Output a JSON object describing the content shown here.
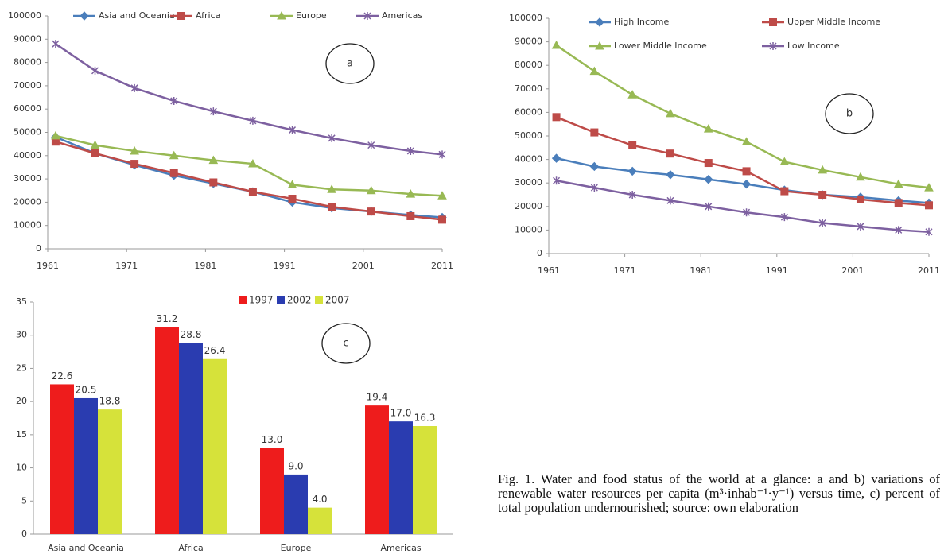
{
  "chart_data": [
    {
      "type": "line",
      "annotation": "a",
      "legend": "top",
      "x": [
        1962,
        1967,
        1972,
        1977,
        1982,
        1987,
        1992,
        1997,
        2002,
        2007,
        2011
      ],
      "xlim": [
        1961,
        2011
      ],
      "xticks": [
        1961,
        1971,
        1981,
        1991,
        2001,
        2011
      ],
      "ylim": [
        0,
        100000
      ],
      "yticks": [
        0,
        10000,
        20000,
        30000,
        40000,
        50000,
        60000,
        70000,
        80000,
        90000,
        100000
      ],
      "series": [
        {
          "name": "Asia and Oceania",
          "color": "#4a7ebb",
          "marker": "diamond",
          "values": [
            48000,
            41000,
            36000,
            31500,
            28000,
            24500,
            20000,
            17500,
            16000,
            14500,
            13500
          ]
        },
        {
          "name": "Africa",
          "color": "#be4b48",
          "marker": "square",
          "values": [
            46000,
            41000,
            36500,
            32500,
            28500,
            24500,
            21500,
            18000,
            16000,
            14000,
            12500
          ]
        },
        {
          "name": "Europe",
          "color": "#98b954",
          "marker": "triangle",
          "values": [
            48500,
            44500,
            42000,
            40000,
            38000,
            36500,
            27500,
            25500,
            25000,
            23500,
            22800
          ]
        },
        {
          "name": "Americas",
          "color": "#7d60a0",
          "marker": "x",
          "values": [
            88000,
            76500,
            69000,
            63500,
            59000,
            55000,
            51000,
            47500,
            44500,
            42000,
            40500
          ]
        }
      ]
    },
    {
      "type": "line",
      "annotation": "b",
      "legend": "top",
      "x": [
        1962,
        1967,
        1972,
        1977,
        1982,
        1987,
        1992,
        1997,
        2002,
        2007,
        2011
      ],
      "xlim": [
        1961,
        2011
      ],
      "xticks": [
        1961,
        1971,
        1981,
        1991,
        2001,
        2011
      ],
      "ylim": [
        0,
        100000
      ],
      "yticks": [
        0,
        10000,
        20000,
        30000,
        40000,
        50000,
        60000,
        70000,
        80000,
        90000,
        100000
      ],
      "series": [
        {
          "name": "High Income",
          "color": "#4a7ebb",
          "marker": "diamond",
          "values": [
            40500,
            37000,
            35000,
            33500,
            31500,
            29500,
            27000,
            25000,
            24000,
            22500,
            21500
          ]
        },
        {
          "name": "Upper Middle Income",
          "color": "#be4b48",
          "marker": "square",
          "values": [
            58000,
            51500,
            46000,
            42500,
            38500,
            35000,
            26500,
            25000,
            23000,
            21500,
            20500
          ]
        },
        {
          "name": "Lower Middle Income",
          "color": "#98b954",
          "marker": "triangle",
          "values": [
            88500,
            77500,
            67500,
            59500,
            53000,
            47500,
            39000,
            35500,
            32500,
            29500,
            28000
          ]
        },
        {
          "name": "Low Income",
          "color": "#7d60a0",
          "marker": "x",
          "values": [
            31000,
            28000,
            25000,
            22500,
            20000,
            17500,
            15500,
            13000,
            11500,
            10000,
            9200
          ]
        }
      ]
    },
    {
      "type": "bar",
      "annotation": "c",
      "legend": "top",
      "categories": [
        "Asia and Oceania",
        "Africa",
        "Europe",
        "Americas"
      ],
      "ylim": [
        0,
        35
      ],
      "yticks": [
        0,
        5,
        10,
        15,
        20,
        25,
        30,
        35
      ],
      "series": [
        {
          "name": "1997",
          "color": "#ee1c1c",
          "values": [
            22.6,
            31.2,
            13,
            19.4
          ],
          "value_labels": [
            "22.6",
            "31.2",
            "13.0",
            "19.4"
          ]
        },
        {
          "name": "2002",
          "color": "#2a3cb0",
          "values": [
            20.5,
            28.8,
            9,
            17
          ],
          "value_labels": [
            "20.5",
            "28.8",
            "9.0",
            "17.0"
          ]
        },
        {
          "name": "2007",
          "color": "#d6e23a",
          "values": [
            18.8,
            26.4,
            4,
            16.3
          ],
          "value_labels": [
            "18.8",
            "26.4",
            "4.0",
            "16.3"
          ]
        }
      ]
    }
  ],
  "caption": "Fig. 1. Water and food status of the world at a glance: a and b) variations of renewable water resources per capita (m³·inhab⁻¹·y⁻¹) versus time, c) percent of total population undernourished; source: own elaboration"
}
